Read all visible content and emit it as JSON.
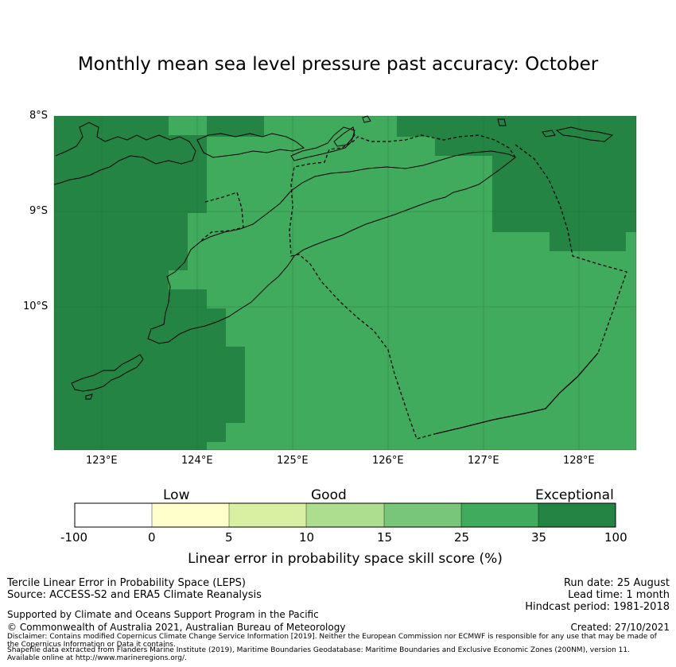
{
  "title": "Monthly mean sea level pressure past accuracy: October",
  "map": {
    "lat_labels": [
      "8°S",
      "9°S",
      "10°S"
    ],
    "lon_labels": [
      "123°E",
      "124°E",
      "125°E",
      "126°E",
      "127°E",
      "128°E"
    ],
    "extent": {
      "lon": [
        122.5,
        128.6
      ],
      "lat": [
        -11.5,
        -8.0
      ]
    },
    "colors": {
      "good_high": "#41ab5d",
      "exceptional": "#238443",
      "coastline": "#000000",
      "eez_boundary": "#000000"
    }
  },
  "colorbar": {
    "category_labels": [
      "Low",
      "Good",
      "Exceptional"
    ],
    "tick_labels": [
      "-100",
      "0",
      "5",
      "10",
      "15",
      "25",
      "35",
      "100"
    ],
    "colors": [
      "#ffffff",
      "#ffffcc",
      "#d9f0a3",
      "#addd8e",
      "#78c679",
      "#41ab5d",
      "#238443"
    ],
    "xlabel": "Linear error in probability space skill score (%)"
  },
  "footer": {
    "left_line1": "Tercile Linear Error in Probability Space (LEPS)",
    "left_line2": "Source: ACCESS-S2 and ERA5 Climate Reanalysis",
    "support": "Supported by Climate and Oceans Support Program in the Pacific",
    "copyright": "© Commonwealth of Australia 2021, Australian Bureau of Meteorology",
    "disclaimer1": "Disclaimer: Contains modified Copernicus Climate Change Service Information [2019]. Neither the European Commission nor ECMWF is responsible for any use that may be made of",
    "disclaimer2": "the Copernicus Information or Data it contains.",
    "shapefile1": "Shapefile data extracted from Flanders Marine Institute (2019), Maritime Boundaries Geodatabase: Maritime Boundaries and Exclusive Economic Zones (200NM), version 11.",
    "shapefile2": "Available online at http://www.marineregions.org/.",
    "run_date": "Run date: 25 August",
    "lead_time": "Lead time: 1 month",
    "hindcast": "Hindcast period: 1981-2018",
    "created": "Created: 27/10/2021"
  }
}
